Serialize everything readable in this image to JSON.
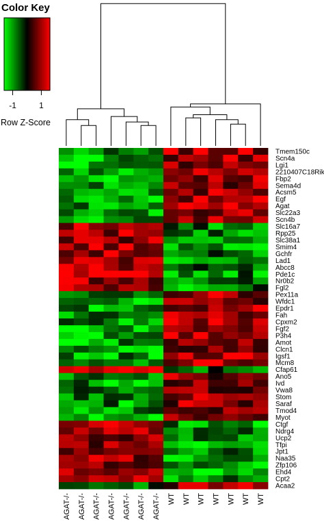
{
  "chart_data": {
    "type": "heatmap",
    "color_key": {
      "title": "Color Key",
      "label": "Row Z-Score",
      "ticks": [
        -1,
        1
      ],
      "range": [
        -1.6,
        1.6
      ],
      "low_color": "#00ff00",
      "mid_color": "#000000",
      "high_color": "#ff0000"
    },
    "columns": [
      "AGAT-/-",
      "AGAT-/-",
      "AGAT-/-",
      "AGAT-/-",
      "AGAT-/-",
      "AGAT-/-",
      "AGAT-/-",
      "WT",
      "WT",
      "WT",
      "WT",
      "WT",
      "WT",
      "WT"
    ],
    "rows": [
      "Tmem150c",
      "Scn4a",
      "Lgi1",
      "2210407C18Rik",
      "Fbp2",
      "Sema4d",
      "Acsm5",
      "Egf",
      "Agat",
      "Slc22a3",
      "Scn4b",
      "Slc16a7",
      "Rpp25",
      "Slc38a1",
      "Smim4",
      "Gchfr",
      "Lad1",
      "Abcc8",
      "Pde1c",
      "Nr0b2",
      "Fgl2",
      "Pex11a",
      "Wfdc1",
      "Epdr1",
      "Fah",
      "Cpxm2",
      "Fgf2",
      "P3h4",
      "Amot",
      "Clcn1",
      "Igsf1",
      "Mcm8",
      "Cfap61",
      "Ano5",
      "Ivd",
      "Vwa8",
      "Stom",
      "Saraf",
      "Tmod4",
      "Myot",
      "Ctgf",
      "Ndrg4",
      "Ucp2",
      "Tfpi",
      "Jpt1",
      "Naa35",
      "Zfp106",
      "Ehd4",
      "Cpt2",
      "Acaa2"
    ],
    "row_groups": [
      {
        "rows": [
          0,
          10
        ],
        "agat": -1.05,
        "wt": 1.0
      },
      {
        "rows": [
          11,
          20
        ],
        "agat": 1.05,
        "wt": -0.8
      },
      {
        "rows": [
          21,
          31
        ],
        "agat": -1.0,
        "wt": 1.0
      },
      {
        "rows": [
          32,
          32
        ],
        "agat": 1.2,
        "wt": -0.6
      },
      {
        "rows": [
          33,
          39
        ],
        "agat": -0.9,
        "wt": 0.9
      },
      {
        "rows": [
          40,
          48
        ],
        "agat": 1.0,
        "wt": -0.9
      },
      {
        "rows": [
          49,
          49
        ],
        "agat": -0.6,
        "wt": 0.9
      }
    ],
    "column_dendrogram": {
      "merges": [
        [
          -2,
          -3,
          0.45
        ],
        [
          -1,
          1,
          0.58
        ],
        [
          -6,
          -7,
          0.45
        ],
        [
          -5,
          3,
          0.53
        ],
        [
          -4,
          4,
          0.65
        ],
        [
          2,
          5,
          0.82
        ],
        [
          -12,
          -13,
          0.48
        ],
        [
          -11,
          7,
          0.58
        ],
        [
          -9,
          -10,
          0.62
        ],
        [
          8,
          9,
          0.69
        ],
        [
          -8,
          10,
          0.86
        ],
        [
          -14,
          11,
          0.93
        ],
        [
          6,
          12,
          3.15
        ]
      ],
      "ymax": 3.2
    }
  }
}
